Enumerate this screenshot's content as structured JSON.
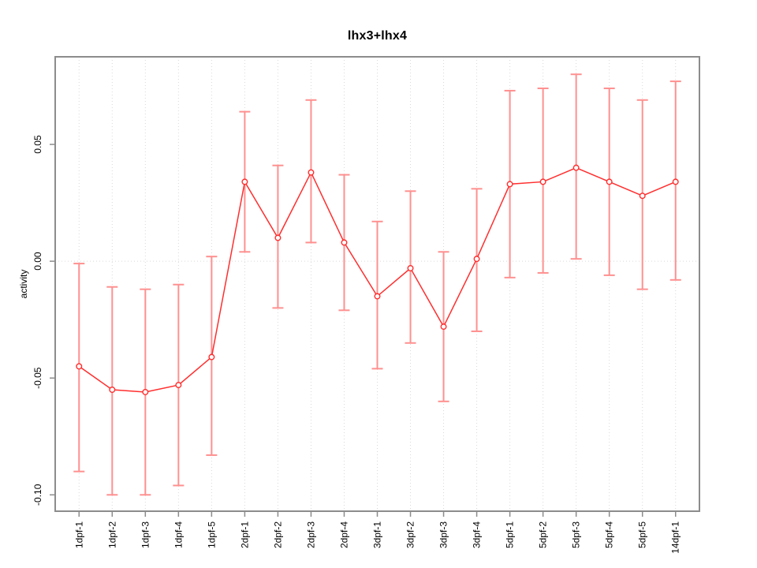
{
  "chart_data": {
    "type": "line",
    "title": "lhx3+lhx4",
    "xlabel": "",
    "ylabel": "activity",
    "categories": [
      "1dpf-1",
      "1dpf-2",
      "1dpf-3",
      "1dpf-4",
      "1dpf-5",
      "2dpf-1",
      "2dpf-2",
      "2dpf-3",
      "2dpf-4",
      "3dpf-1",
      "3dpf-2",
      "3dpf-3",
      "3dpf-4",
      "5dpf-1",
      "5dpf-2",
      "5dpf-3",
      "5dpf-4",
      "5dpf-5",
      "14dpf-1"
    ],
    "series": [
      {
        "name": "activity",
        "values": [
          -0.045,
          -0.055,
          -0.056,
          -0.053,
          -0.041,
          0.034,
          0.01,
          0.038,
          0.008,
          -0.015,
          -0.003,
          -0.028,
          0.001,
          0.033,
          0.034,
          0.04,
          0.034,
          0.028,
          0.034
        ],
        "error_low": [
          -0.09,
          -0.1,
          -0.1,
          -0.096,
          -0.083,
          0.004,
          -0.02,
          0.008,
          -0.021,
          -0.046,
          -0.035,
          -0.06,
          -0.03,
          -0.007,
          -0.005,
          0.001,
          -0.006,
          -0.012,
          -0.008
        ],
        "error_high": [
          -0.001,
          -0.011,
          -0.012,
          -0.01,
          0.002,
          0.064,
          0.041,
          0.069,
          0.037,
          0.017,
          0.03,
          0.004,
          0.031,
          0.073,
          0.074,
          0.08,
          0.074,
          0.069,
          0.077
        ]
      }
    ],
    "ylim": [
      -0.107,
      0.0875
    ],
    "yticks": [
      -0.1,
      -0.05,
      0.0,
      0.05
    ],
    "ytick_labels": [
      "-0.10",
      "-0.05",
      "0.00",
      "0.05"
    ],
    "grid": {
      "vertical": "dotted line at every category",
      "horizontal": "dotted line at 0.00 only"
    },
    "legend_position": "none",
    "marker": "open-circle",
    "colors": {
      "line": "#ff2e2e",
      "marker_stroke": "#ff2e2e",
      "error_bar": "#ff9090",
      "axis": "#8c8c8c",
      "grid": "#d9d9d9",
      "text": "#000000",
      "background": "#ffffff"
    }
  }
}
